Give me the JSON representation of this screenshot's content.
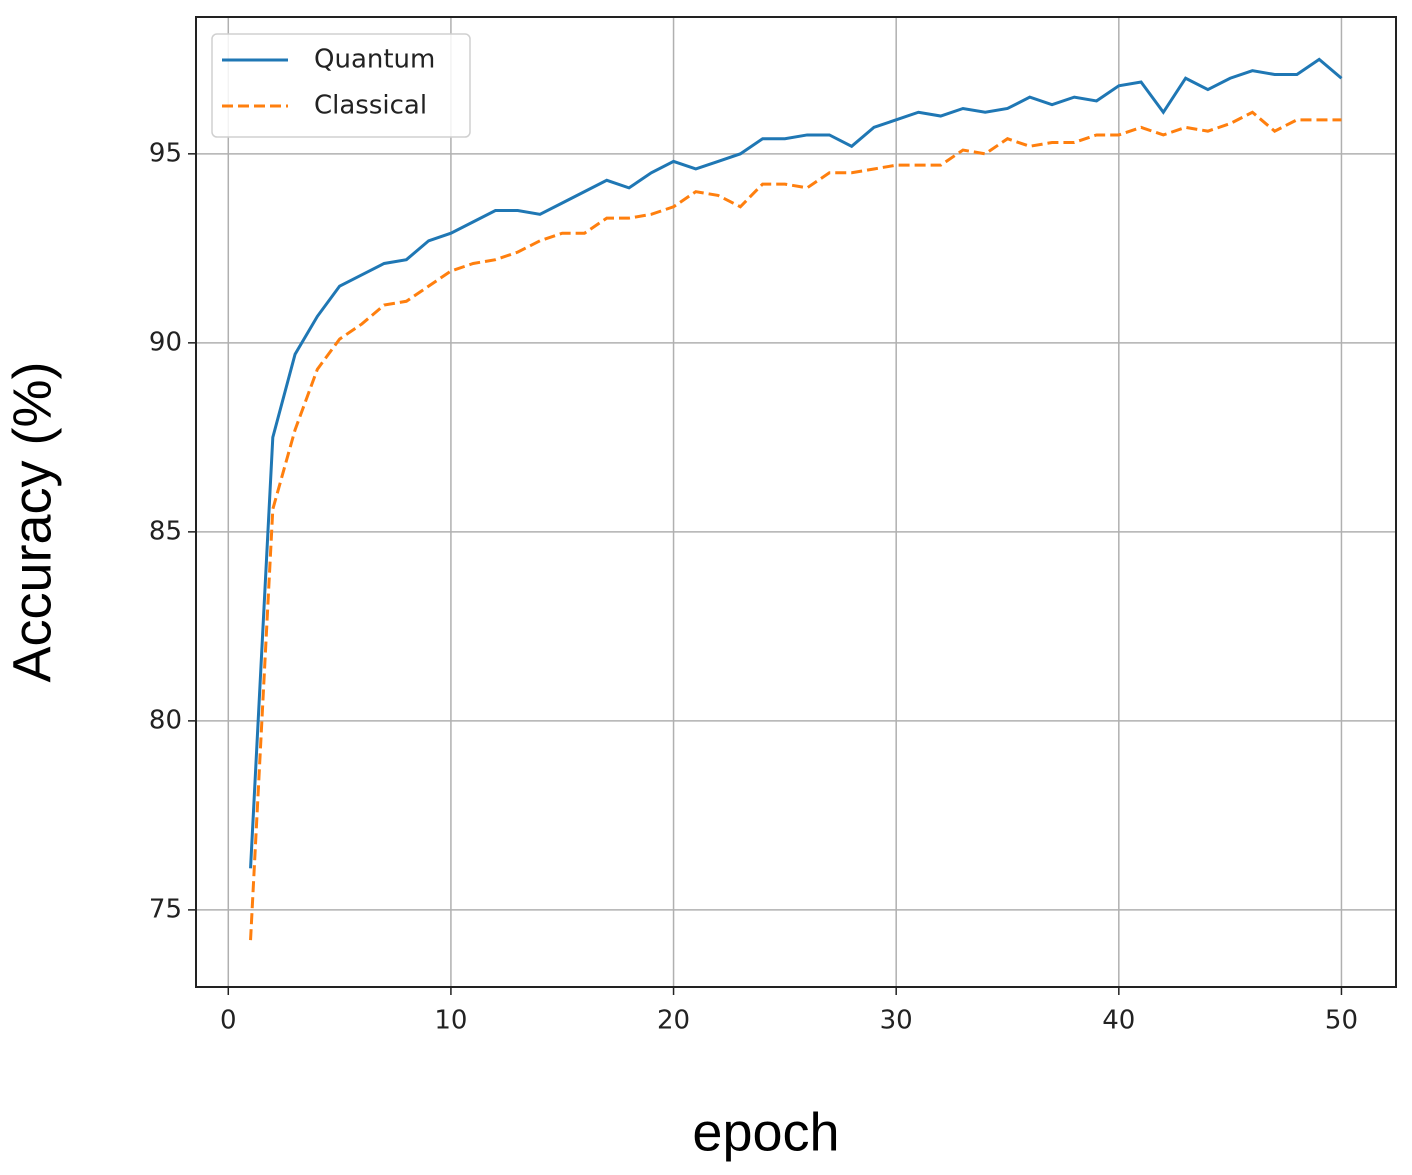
{
  "chart_data": {
    "type": "line",
    "x_label": "epoch",
    "y_label": "Accuracy (%)",
    "x": [
      1,
      2,
      3,
      4,
      5,
      6,
      7,
      8,
      9,
      10,
      11,
      12,
      13,
      14,
      15,
      16,
      17,
      18,
      19,
      20,
      21,
      22,
      23,
      24,
      25,
      26,
      27,
      28,
      29,
      30,
      31,
      32,
      33,
      34,
      35,
      36,
      37,
      38,
      39,
      40,
      41,
      42,
      43,
      44,
      45,
      46,
      47,
      48,
      49,
      50
    ],
    "series": [
      {
        "name": "Quantum",
        "color": "#1f77b4",
        "linestyle": "solid",
        "values": [
          76.1,
          87.5,
          89.7,
          90.7,
          91.5,
          91.8,
          92.1,
          92.2,
          92.7,
          92.9,
          93.2,
          93.5,
          93.5,
          93.4,
          93.7,
          94.0,
          94.3,
          94.1,
          94.5,
          94.8,
          94.6,
          94.8,
          95.0,
          95.4,
          95.4,
          95.5,
          95.5,
          95.2,
          95.7,
          95.9,
          96.1,
          96.0,
          96.2,
          96.1,
          96.2,
          96.5,
          96.3,
          96.5,
          96.4,
          96.8,
          96.9,
          96.1,
          97.0,
          96.7,
          97.0,
          97.2,
          97.1,
          97.1,
          97.5,
          97.0
        ]
      },
      {
        "name": "Classical",
        "color": "#ff7f0e",
        "linestyle": "dashed",
        "values": [
          74.2,
          85.6,
          87.7,
          89.3,
          90.1,
          90.5,
          91.0,
          91.1,
          91.5,
          91.9,
          92.1,
          92.2,
          92.4,
          92.7,
          92.9,
          92.9,
          93.3,
          93.3,
          93.4,
          93.6,
          94.0,
          93.9,
          93.6,
          94.2,
          94.2,
          94.1,
          94.5,
          94.5,
          94.6,
          94.7,
          94.7,
          94.7,
          95.1,
          95.0,
          95.4,
          95.2,
          95.3,
          95.3,
          95.5,
          95.5,
          95.7,
          95.5,
          95.7,
          95.6,
          95.8,
          96.1,
          95.6,
          95.9,
          95.9,
          95.9
        ]
      }
    ],
    "xlim": [
      -1.45,
      52.45
    ],
    "xticks": [
      0,
      10,
      20,
      30,
      40,
      50
    ],
    "ylim": [
      72.96,
      98.62
    ],
    "yticks": [
      75,
      80,
      85,
      90,
      95
    ],
    "grid": true,
    "legend": "upper left"
  }
}
